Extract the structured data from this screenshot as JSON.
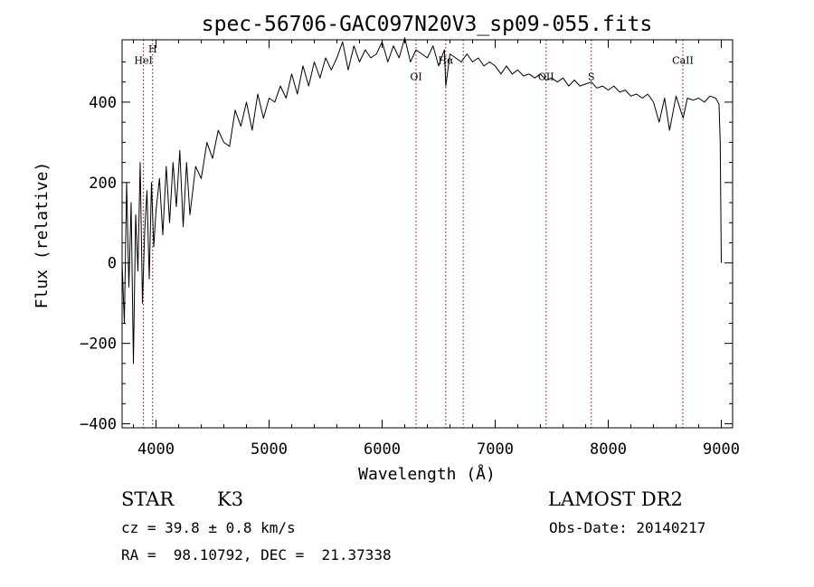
{
  "chart_data": {
    "type": "line",
    "title": "spec-56706-GAC097N20V3_sp09-055.fits",
    "xlabel": "Wavelength (Å)",
    "ylabel": "Flux (relative)",
    "xlim": [
      3700,
      9100
    ],
    "ylim": [
      -410,
      555
    ],
    "xticks": [
      4000,
      5000,
      6000,
      7000,
      8000,
      9000
    ],
    "yticks": [
      -400,
      -200,
      0,
      200,
      400
    ],
    "grid": false,
    "line_color": "#000000",
    "marker_color": "#8b0000",
    "lines": [
      {
        "name": "HeI",
        "wavelength": 3889,
        "label_y": 495
      },
      {
        "name": "H",
        "wavelength": 3970,
        "label_y": 523
      },
      {
        "name": "OI",
        "wavelength": 6300,
        "label_y": 455
      },
      {
        "name": "Hα",
        "wavelength": 6563,
        "label_y": 495
      },
      {
        "name": "",
        "wavelength": 6717,
        "label_y": 0
      },
      {
        "name": "OII",
        "wavelength": 7450,
        "label_y": 455
      },
      {
        "name": "S",
        "wavelength": 7850,
        "label_y": 455
      },
      {
        "name": "CaII",
        "wavelength": 8660,
        "label_y": 495
      }
    ],
    "spectrum": {
      "x": [
        3700,
        3720,
        3740,
        3760,
        3780,
        3800,
        3820,
        3840,
        3860,
        3880,
        3900,
        3920,
        3940,
        3960,
        3980,
        4000,
        4030,
        4060,
        4090,
        4120,
        4150,
        4180,
        4210,
        4240,
        4270,
        4300,
        4350,
        4400,
        4450,
        4500,
        4550,
        4600,
        4650,
        4700,
        4750,
        4800,
        4850,
        4900,
        4950,
        5000,
        5050,
        5100,
        5150,
        5200,
        5250,
        5300,
        5350,
        5400,
        5450,
        5500,
        5550,
        5600,
        5650,
        5700,
        5750,
        5800,
        5850,
        5900,
        5950,
        6000,
        6050,
        6100,
        6150,
        6200,
        6250,
        6300,
        6350,
        6400,
        6450,
        6500,
        6550,
        6563,
        6600,
        6650,
        6700,
        6750,
        6800,
        6850,
        6900,
        6950,
        7000,
        7050,
        7100,
        7150,
        7200,
        7250,
        7300,
        7350,
        7400,
        7450,
        7500,
        7550,
        7600,
        7650,
        7700,
        7750,
        7800,
        7850,
        7900,
        7950,
        8000,
        8050,
        8100,
        8150,
        8200,
        8250,
        8300,
        8350,
        8400,
        8450,
        8498,
        8542,
        8600,
        8662,
        8700,
        8750,
        8800,
        8850,
        8900,
        8950,
        8980,
        8990,
        9000
      ],
      "y": [
        0,
        -150,
        200,
        -60,
        150,
        -250,
        120,
        -20,
        250,
        -100,
        80,
        180,
        -40,
        200,
        40,
        130,
        210,
        70,
        240,
        100,
        250,
        140,
        280,
        90,
        250,
        120,
        240,
        210,
        300,
        260,
        330,
        300,
        290,
        380,
        340,
        400,
        330,
        420,
        360,
        410,
        400,
        440,
        410,
        470,
        420,
        490,
        440,
        500,
        460,
        510,
        480,
        510,
        550,
        480,
        540,
        500,
        530,
        510,
        520,
        550,
        500,
        540,
        510,
        560,
        500,
        530,
        520,
        510,
        540,
        490,
        530,
        440,
        520,
        510,
        500,
        520,
        500,
        510,
        490,
        500,
        490,
        470,
        490,
        470,
        480,
        465,
        470,
        460,
        470,
        455,
        460,
        450,
        460,
        440,
        455,
        440,
        445,
        450,
        435,
        440,
        430,
        440,
        425,
        430,
        415,
        420,
        410,
        420,
        400,
        350,
        410,
        330,
        415,
        360,
        410,
        405,
        410,
        400,
        415,
        410,
        395,
        300,
        0
      ]
    }
  },
  "info": {
    "object_class": "STAR",
    "subclass": "K3",
    "survey": "LAMOST DR2",
    "redshift": "cz = 39.8 ± 0.8 km/s",
    "obs_date": "Obs-Date: 20140217",
    "coords": "RA =  98.10792, DEC =  21.37338"
  }
}
